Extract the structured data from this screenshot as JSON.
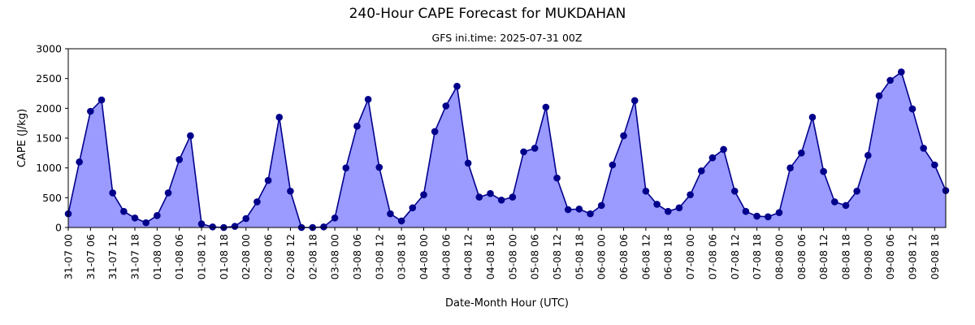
{
  "chart_data": {
    "type": "area",
    "title": "240-Hour CAPE Forecast for MUKDAHAN",
    "subtitle": "GFS ini.time: 2025-07-31 00Z",
    "xlabel": "Date-Month Hour (UTC)",
    "ylabel": "CAPE (J/kg)",
    "ylim": [
      0,
      3000
    ],
    "yticks": [
      0,
      500,
      1000,
      1500,
      2000,
      2500,
      3000
    ],
    "x_step_hours": 3,
    "xtick_step_hours": 6,
    "xticks": [
      "31-07 00",
      "31-07 06",
      "31-07 12",
      "31-07 18",
      "01-08 00",
      "01-08 06",
      "01-08 12",
      "01-08 18",
      "02-08 00",
      "02-08 06",
      "02-08 12",
      "02-08 18",
      "03-08 00",
      "03-08 06",
      "03-08 12",
      "03-08 18",
      "04-08 00",
      "04-08 06",
      "04-08 12",
      "04-08 18",
      "05-08 00",
      "05-08 06",
      "05-08 12",
      "05-08 18",
      "06-08 00",
      "06-08 06",
      "06-08 12",
      "06-08 18",
      "07-08 00",
      "07-08 06",
      "07-08 12",
      "07-08 18",
      "08-08 00",
      "08-08 06",
      "08-08 12",
      "08-08 18",
      "09-08 00",
      "09-08 06",
      "09-08 12",
      "09-08 18"
    ],
    "values": [
      230,
      1100,
      1950,
      2140,
      580,
      270,
      160,
      80,
      200,
      580,
      1140,
      1540,
      60,
      10,
      0,
      20,
      150,
      430,
      790,
      1850,
      610,
      0,
      0,
      10,
      160,
      1000,
      1700,
      2150,
      1010,
      230,
      110,
      330,
      550,
      1610,
      2040,
      2370,
      1080,
      510,
      570,
      460,
      510,
      1270,
      1330,
      2020,
      830,
      300,
      310,
      230,
      370,
      1050,
      1540,
      2130,
      610,
      390,
      270,
      330,
      550,
      950,
      1170,
      1310,
      610,
      270,
      190,
      180,
      250,
      1000,
      1250,
      1850,
      940,
      430,
      370,
      610,
      1210,
      2210,
      2470,
      2610,
      1990,
      1330,
      1050,
      620
    ],
    "colors": {
      "fill": "#9a9aff",
      "line": "#00008b",
      "marker": "#00008b"
    },
    "grid": false,
    "legend": "none"
  }
}
